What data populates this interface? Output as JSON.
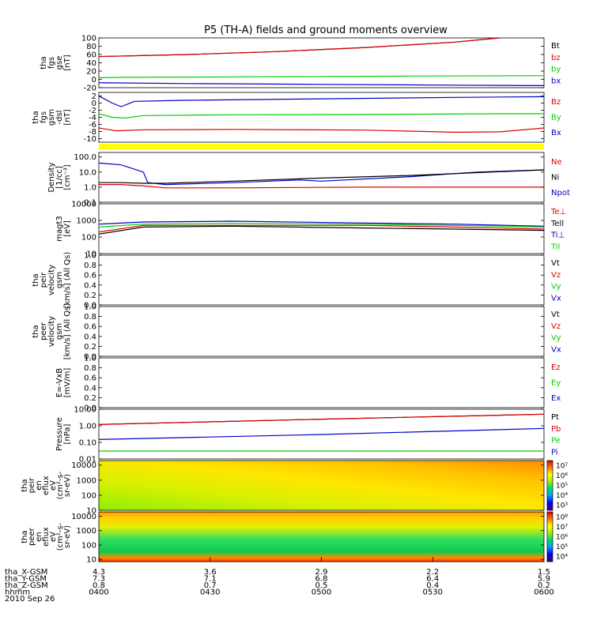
{
  "title": "P5 (TH-A) fields and ground moments overview",
  "colors": {
    "black": "#000000",
    "red": "#e00000",
    "green": "#00d000",
    "blue": "#0000c8",
    "yellow": "#ffff00"
  },
  "chart_data": [
    {
      "id": "fgs-gse",
      "type": "line",
      "ylabel": [
        "tha",
        "fgs",
        "gse",
        "[nT]"
      ],
      "ylim": [
        -20,
        100
      ],
      "yticks": [
        -20,
        0,
        20,
        40,
        60,
        80,
        100
      ],
      "legend": [
        {
          "name": "Bt",
          "color": "black"
        },
        {
          "name": "bz",
          "color": "red"
        },
        {
          "name": "by",
          "color": "green"
        },
        {
          "name": "bx",
          "color": "blue"
        }
      ],
      "series": [
        {
          "name": "Bt",
          "color": "black",
          "x": [
            0,
            0.2,
            0.4,
            0.6,
            0.8,
            0.9
          ],
          "y": [
            55,
            60,
            67,
            77,
            90,
            100
          ]
        },
        {
          "name": "bz",
          "color": "red",
          "x": [
            0,
            0.2,
            0.4,
            0.6,
            0.8,
            0.9
          ],
          "y": [
            55,
            60,
            67,
            77,
            90,
            100
          ]
        },
        {
          "name": "by",
          "color": "green",
          "x": [
            0,
            0.05,
            0.3,
            0.5,
            0.7,
            1
          ],
          "y": [
            4,
            5,
            6,
            7,
            8,
            9
          ]
        },
        {
          "name": "bx",
          "color": "blue",
          "x": [
            0,
            0.2,
            0.5,
            0.8,
            1
          ],
          "y": [
            -8,
            -10,
            -12,
            -14,
            -15
          ]
        }
      ]
    },
    {
      "id": "fgs-gsm",
      "type": "line",
      "ylabel": [
        "tha",
        "fgs",
        "gsm",
        "-dsl",
        "[nT]"
      ],
      "ylim": [
        -11,
        3
      ],
      "yticks": [
        -10,
        -8,
        -6,
        -4,
        -2,
        0,
        2
      ],
      "legend": [
        {
          "name": "Bz",
          "color": "red"
        },
        {
          "name": "By",
          "color": "green"
        },
        {
          "name": "Bx",
          "color": "blue"
        }
      ],
      "series": [
        {
          "name": "Bx",
          "color": "blue",
          "x": [
            0,
            0.03,
            0.05,
            0.08,
            0.2,
            0.5,
            0.8,
            1
          ],
          "y": [
            2,
            0,
            -1,
            0.5,
            0.8,
            1.2,
            1.6,
            1.8
          ]
        },
        {
          "name": "By",
          "color": "green",
          "x": [
            0,
            0.03,
            0.06,
            0.1,
            0.3,
            0.6,
            0.9,
            1
          ],
          "y": [
            -3,
            -4,
            -4.2,
            -3.5,
            -3.3,
            -3.2,
            -3,
            -3
          ]
        },
        {
          "name": "Bz",
          "color": "red",
          "x": [
            0,
            0.04,
            0.1,
            0.3,
            0.6,
            0.8,
            0.9,
            1
          ],
          "y": [
            -7,
            -7.8,
            -7.5,
            -7.4,
            -7.6,
            -8.2,
            -8.1,
            -7
          ]
        }
      ]
    },
    {
      "id": "mode-bar",
      "type": "bar_strip",
      "color": "yellow",
      "x": [
        0,
        1
      ]
    },
    {
      "id": "density",
      "type": "line",
      "log": true,
      "ylabel": [
        "Density",
        "[1/cc]",
        "[cm⁻³]"
      ],
      "ylim": [
        0.1,
        200
      ],
      "yticks": [
        0.1,
        1.0,
        10.0,
        100.0
      ],
      "ytick_labels": [
        "0.1",
        "1.0",
        "10.0",
        "100.0"
      ],
      "legend": [
        {
          "name": "Ne",
          "color": "red"
        },
        {
          "name": "Ni",
          "color": "black"
        },
        {
          "name": "Npot",
          "color": "blue"
        }
      ],
      "series": [
        {
          "name": "Npot",
          "color": "blue",
          "x": [
            0,
            0.05,
            0.1,
            0.11,
            0.15,
            0.3,
            0.45,
            0.5,
            0.7,
            0.85,
            1
          ],
          "y": [
            40,
            30,
            10,
            2,
            1.5,
            2,
            3,
            2.5,
            5,
            10,
            14
          ]
        },
        {
          "name": "Ni",
          "color": "black",
          "x": [
            0,
            0.05,
            0.1,
            0.15,
            0.3,
            0.5,
            0.7,
            1
          ],
          "y": [
            2,
            2,
            1.8,
            1.8,
            2.5,
            4,
            6,
            14
          ]
        },
        {
          "name": "Ne",
          "color": "red",
          "x": [
            0,
            0.05,
            0.1,
            0.15,
            0.3,
            0.6,
            0.8,
            1
          ],
          "y": [
            1.5,
            1.5,
            1.2,
            0.9,
            0.9,
            1.0,
            1.0,
            1.0
          ]
        }
      ]
    },
    {
      "id": "temperature",
      "type": "line",
      "log": true,
      "ylabel": [
        "magt3",
        "[eV]"
      ],
      "ylim": [
        10,
        10000
      ],
      "yticks": [
        10,
        100,
        1000,
        10000
      ],
      "ytick_labels": [
        "10",
        "100",
        "1000",
        "10000"
      ],
      "legend": [
        {
          "name": "Te⊥",
          "color": "red"
        },
        {
          "name": "Tell",
          "color": "black"
        },
        {
          "name": "Ti⊥",
          "color": "blue"
        },
        {
          "name": "Til",
          "color": "green"
        }
      ],
      "series": [
        {
          "name": "Ti⊥",
          "color": "blue",
          "x": [
            0,
            0.1,
            0.3,
            0.6,
            0.8,
            1
          ],
          "y": [
            600,
            800,
            900,
            700,
            600,
            450
          ]
        },
        {
          "name": "Til",
          "color": "green",
          "x": [
            0,
            0.1,
            0.3,
            0.6,
            0.8,
            1
          ],
          "y": [
            400,
            600,
            650,
            600,
            500,
            400
          ]
        },
        {
          "name": "Te⊥",
          "color": "red",
          "x": [
            0,
            0.1,
            0.3,
            0.6,
            0.8,
            1
          ],
          "y": [
            200,
            500,
            500,
            500,
            400,
            300
          ]
        },
        {
          "name": "Tell",
          "color": "black",
          "x": [
            0,
            0.1,
            0.3,
            0.6,
            0.8,
            1
          ],
          "y": [
            150,
            400,
            450,
            350,
            300,
            250
          ]
        }
      ]
    },
    {
      "id": "peir-velocity",
      "type": "line",
      "ylabel": [
        "tha",
        "peir",
        "velocity",
        "gsm",
        "[km/s] (All Qs)"
      ],
      "ylim": [
        0,
        1
      ],
      "yticks": [
        0,
        0.2,
        0.4,
        0.6,
        0.8,
        1.0
      ],
      "ytick_labels": [
        "0.0",
        "0.2",
        "0.4",
        "0.6",
        "0.8",
        "1.0"
      ],
      "legend": [
        {
          "name": "Vt",
          "color": "black"
        },
        {
          "name": "Vz",
          "color": "red"
        },
        {
          "name": "Vy",
          "color": "green"
        },
        {
          "name": "Vx",
          "color": "blue"
        }
      ],
      "series": []
    },
    {
      "id": "peer-velocity",
      "type": "line",
      "ylabel": [
        "tha",
        "peer",
        "velocity",
        "gsm",
        "[km/s] (All Qs)"
      ],
      "ylim": [
        0,
        1
      ],
      "yticks": [
        0,
        0.2,
        0.4,
        0.6,
        0.8,
        1.0
      ],
      "ytick_labels": [
        "0.0",
        "0.2",
        "0.4",
        "0.6",
        "0.8",
        "1.0"
      ],
      "legend": [
        {
          "name": "Vt",
          "color": "black"
        },
        {
          "name": "Vz",
          "color": "red"
        },
        {
          "name": "Vy",
          "color": "green"
        },
        {
          "name": "Vx",
          "color": "blue"
        }
      ],
      "series": []
    },
    {
      "id": "efield",
      "type": "line",
      "ylabel": [
        "E=-VxB",
        "[mV/m]"
      ],
      "ylim": [
        0,
        1
      ],
      "yticks": [
        0,
        0.2,
        0.4,
        0.6,
        0.8,
        1.0
      ],
      "ytick_labels": [
        "0.0",
        "0.2",
        "0.4",
        "0.6",
        "0.8",
        "1.0"
      ],
      "legend": [
        {
          "name": "Ez",
          "color": "red"
        },
        {
          "name": "Ey",
          "color": "green"
        },
        {
          "name": "Ex",
          "color": "blue"
        }
      ],
      "series": []
    },
    {
      "id": "pressure",
      "type": "line",
      "log": true,
      "ylabel": [
        "Pressure",
        "[nPa]"
      ],
      "ylim": [
        0.01,
        10
      ],
      "yticks": [
        0.01,
        0.1,
        1,
        10
      ],
      "ytick_labels": [
        "0.01",
        "0.10",
        "1.00",
        "10.00"
      ],
      "legend": [
        {
          "name": "Pt",
          "color": "black"
        },
        {
          "name": "Pb",
          "color": "red"
        },
        {
          "name": "Pe",
          "color": "green"
        },
        {
          "name": "Pi",
          "color": "blue"
        }
      ],
      "series": [
        {
          "name": "Pt",
          "color": "black",
          "x": [
            0,
            0.5,
            1
          ],
          "y": [
            1.2,
            2.5,
            5.0
          ]
        },
        {
          "name": "Pb",
          "color": "red",
          "x": [
            0,
            0.5,
            1
          ],
          "y": [
            1.2,
            2.5,
            5.0
          ]
        },
        {
          "name": "Pi",
          "color": "blue",
          "x": [
            0,
            0.5,
            1
          ],
          "y": [
            0.15,
            0.3,
            0.7
          ]
        },
        {
          "name": "Pe",
          "color": "green",
          "x": [
            0,
            0.5,
            1
          ],
          "y": [
            0.03,
            0.03,
            0.03
          ]
        }
      ]
    },
    {
      "id": "peir-spectrogram",
      "type": "heatmap",
      "log": true,
      "ylabel": [
        "tha",
        "peir",
        "en",
        "eflux",
        "eV",
        "(cm²-s-",
        "sr-eV)"
      ],
      "ylim": [
        10,
        20000
      ],
      "yticks": [
        10,
        100,
        1000,
        10000
      ],
      "ytick_labels": [
        "10",
        "100",
        "1000",
        "10000"
      ],
      "colorbar": {
        "labels": [
          "10³",
          "10⁴",
          "10⁵",
          "10⁶",
          "10⁷"
        ]
      }
    },
    {
      "id": "peer-spectrogram",
      "type": "heatmap",
      "log": true,
      "ylabel": [
        "tha",
        "peer",
        "en",
        "eflux",
        "eV",
        "(cm²-s-",
        "sr-eV)"
      ],
      "ylim": [
        7,
        20000
      ],
      "yticks": [
        10,
        100,
        1000,
        10000
      ],
      "ytick_labels": [
        "10",
        "100",
        "1000",
        "10000"
      ],
      "colorbar": {
        "labels": [
          "10⁴",
          "10⁵",
          "10⁶",
          "10⁷",
          "10⁸"
        ]
      }
    }
  ],
  "x_axis": {
    "rows": [
      {
        "label": "tha_X-GSM",
        "values": [
          "4.3",
          "3.6",
          "2.9",
          "2.2",
          "1.5"
        ]
      },
      {
        "label": "tha_Y-GSM",
        "values": [
          "7.3",
          "7.1",
          "6.8",
          "6.4",
          "5.9"
        ]
      },
      {
        "label": "tha_Z-GSM",
        "values": [
          "0.8",
          "0.7",
          "0.5",
          "0.4",
          "0.2"
        ]
      },
      {
        "label": "hhmm",
        "values": [
          "0400",
          "0430",
          "0500",
          "0530",
          "0600"
        ]
      }
    ],
    "date": "2010 Sep 26"
  }
}
